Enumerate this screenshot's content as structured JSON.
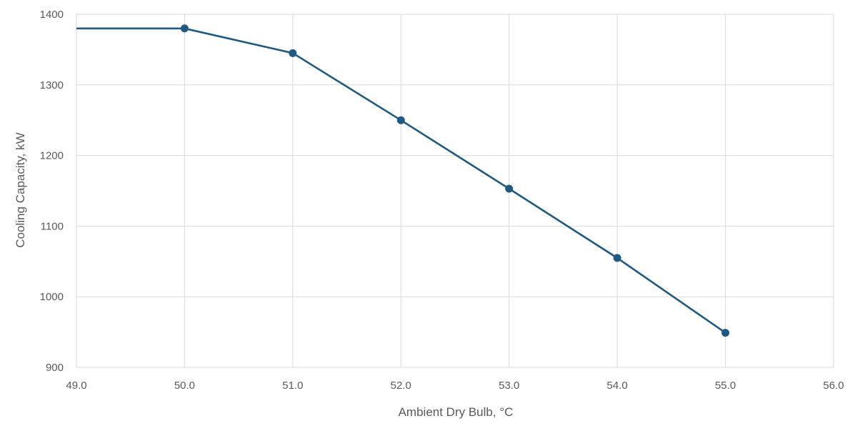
{
  "chart_data": {
    "type": "line",
    "title": "",
    "xlabel": "Ambient Dry Bulb, °C",
    "ylabel": "Cooling Capacity, kW",
    "xlim": [
      49.0,
      56.0
    ],
    "ylim": [
      900,
      1400
    ],
    "x_ticks": [
      "49.0",
      "50.0",
      "51.0",
      "52.0",
      "53.0",
      "54.0",
      "55.0",
      "56.0"
    ],
    "y_ticks": [
      "900",
      "1000",
      "1100",
      "1200",
      "1300",
      "1400"
    ],
    "grid": true,
    "legend": "none",
    "series": [
      {
        "color": "#1f5a82",
        "line_points": [
          {
            "x": 49.0,
            "y": 1380
          },
          {
            "x": 50.0,
            "y": 1380
          },
          {
            "x": 51.0,
            "y": 1345
          },
          {
            "x": 52.0,
            "y": 1250
          },
          {
            "x": 53.0,
            "y": 1153
          },
          {
            "x": 54.0,
            "y": 1055
          },
          {
            "x": 55.0,
            "y": 949
          }
        ],
        "markers": [
          {
            "x": 50.0,
            "y": 1380
          },
          {
            "x": 51.0,
            "y": 1345
          },
          {
            "x": 52.0,
            "y": 1250
          },
          {
            "x": 53.0,
            "y": 1153
          },
          {
            "x": 54.0,
            "y": 1055
          },
          {
            "x": 55.0,
            "y": 949
          }
        ]
      }
    ]
  }
}
